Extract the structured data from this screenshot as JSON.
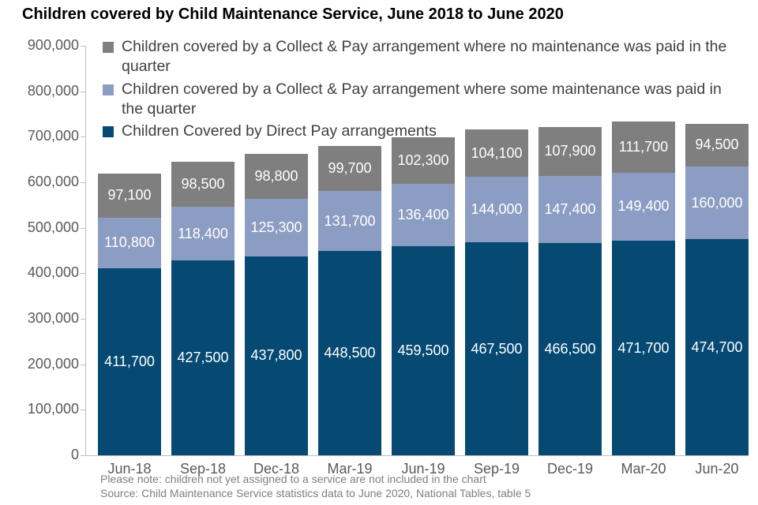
{
  "page": {
    "title": "Children covered by Child Maintenance Service, June 2018 to June 2020",
    "note": "Please note: children not yet assigned to a service are not included in the chart",
    "source": "Source: Child Maintenance Service statistics data to June 2020, National Tables, table 5"
  },
  "colors": {
    "direct_pay": "#064a73",
    "some_maintenance": "#8c9dc3",
    "no_maintenance": "#7f7f7f",
    "axis_text": "#595959",
    "legend_text": "#404040",
    "bar_label_text": "#ffffff",
    "footnote_text": "#7f7f7f",
    "axis_line": "#bfbfbf"
  },
  "chart_data": {
    "type": "bar",
    "stacked": true,
    "title": "Children covered by Child Maintenance Service, June 2018 to June 2020",
    "categories": [
      "Jun-18",
      "Sep-18",
      "Dec-18",
      "Mar-19",
      "Jun-19",
      "Sep-19",
      "Dec-19",
      "Mar-20",
      "Jun-20"
    ],
    "series": [
      {
        "name": "Children Covered by Direct Pay arrangements",
        "color": "#064a73",
        "values": [
          411700,
          427500,
          437800,
          448500,
          459500,
          467500,
          466500,
          471700,
          474700
        ]
      },
      {
        "name": "Children covered by a Collect & Pay arrangement where some maintenance was paid in the quarter",
        "color": "#8c9dc3",
        "values": [
          110800,
          118400,
          125300,
          131700,
          136400,
          144000,
          147400,
          149400,
          160000
        ]
      },
      {
        "name": "Children covered by a Collect & Pay arrangement where no maintenance was paid in the quarter",
        "color": "#7f7f7f",
        "values": [
          97100,
          98500,
          98800,
          99700,
          102300,
          104100,
          107900,
          111700,
          94500
        ]
      }
    ],
    "legend": {
      "position": "top-left-overlay",
      "order_top_to_bottom": [
        "no_maintenance",
        "some_maintenance",
        "direct_pay"
      ]
    },
    "y_axis": {
      "min": 0,
      "max": 900000,
      "step": 100000,
      "tick_labels": [
        "0",
        "100,000",
        "200,000",
        "300,000",
        "400,000",
        "500,000",
        "600,000",
        "700,000",
        "800,000",
        "900,000"
      ]
    },
    "x_axis": {
      "label": ""
    },
    "gridlines": false,
    "data_labels": "inside segments, white, thousands-separated"
  }
}
